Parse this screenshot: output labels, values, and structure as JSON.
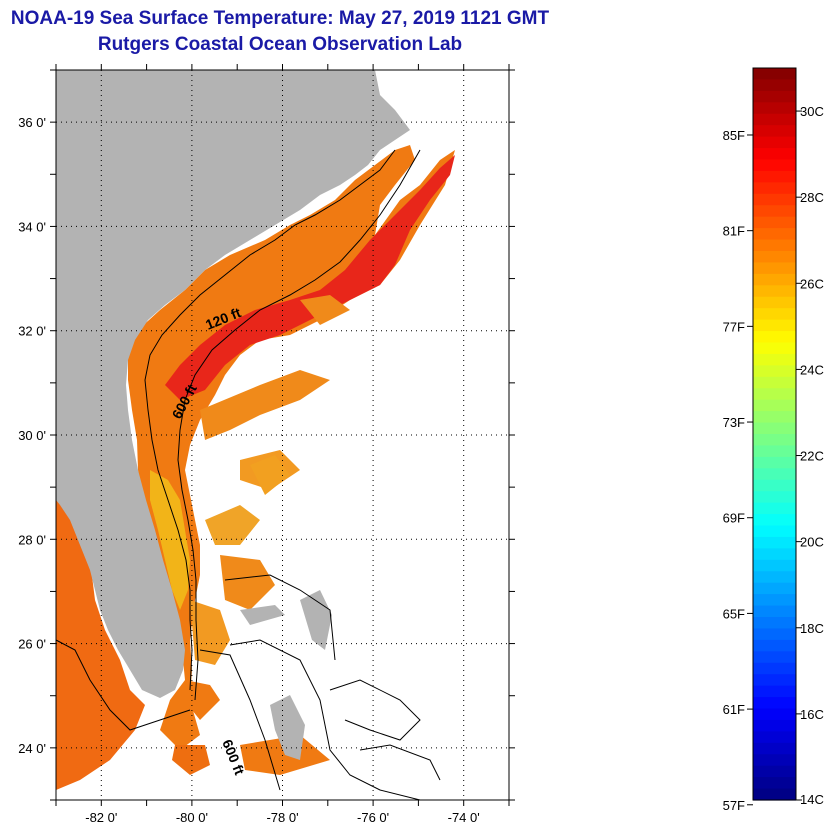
{
  "header": {
    "title": "NOAA-19 Sea Surface Temperature:  May 27, 2019 1121 GMT",
    "subtitle": "Rutgers Coastal Ocean Observation Lab"
  },
  "map": {
    "lon_range": [
      -83,
      -73
    ],
    "lat_range": [
      23,
      37
    ],
    "lon_ticks": [
      {
        "value": -82,
        "label": "-82 0'"
      },
      {
        "value": -80,
        "label": "-80 0'"
      },
      {
        "value": -78,
        "label": "-78 0'"
      },
      {
        "value": -76,
        "label": "-76 0'"
      },
      {
        "value": -74,
        "label": "-74 0'"
      }
    ],
    "lat_ticks": [
      {
        "value": 24,
        "label": "24 0'"
      },
      {
        "value": 26,
        "label": "26 0'"
      },
      {
        "value": 28,
        "label": "28 0'"
      },
      {
        "value": 30,
        "label": "30 0'"
      },
      {
        "value": 32,
        "label": "32 0'"
      },
      {
        "value": 34,
        "label": "34 0'"
      },
      {
        "value": 36,
        "label": "36 0'"
      }
    ],
    "grid": "dotted",
    "land_color": "#b3b3b3",
    "contour_labels": [
      "120 ft",
      "600 ft",
      "600 ft"
    ]
  },
  "colorbar": {
    "c_range": [
      14,
      31
    ],
    "c_labels": [
      "30C",
      "28C",
      "26C",
      "24C",
      "22C",
      "20C",
      "18C",
      "16C",
      "14C"
    ],
    "c_values": [
      30,
      28,
      26,
      24,
      22,
      20,
      18,
      16,
      14
    ],
    "f_labels": [
      "85F",
      "81F",
      "77F",
      "73F",
      "69F",
      "65F",
      "61F",
      "57F"
    ],
    "f_values": [
      85,
      81,
      77,
      73,
      69,
      65,
      61,
      57
    ],
    "palette": "jet"
  }
}
